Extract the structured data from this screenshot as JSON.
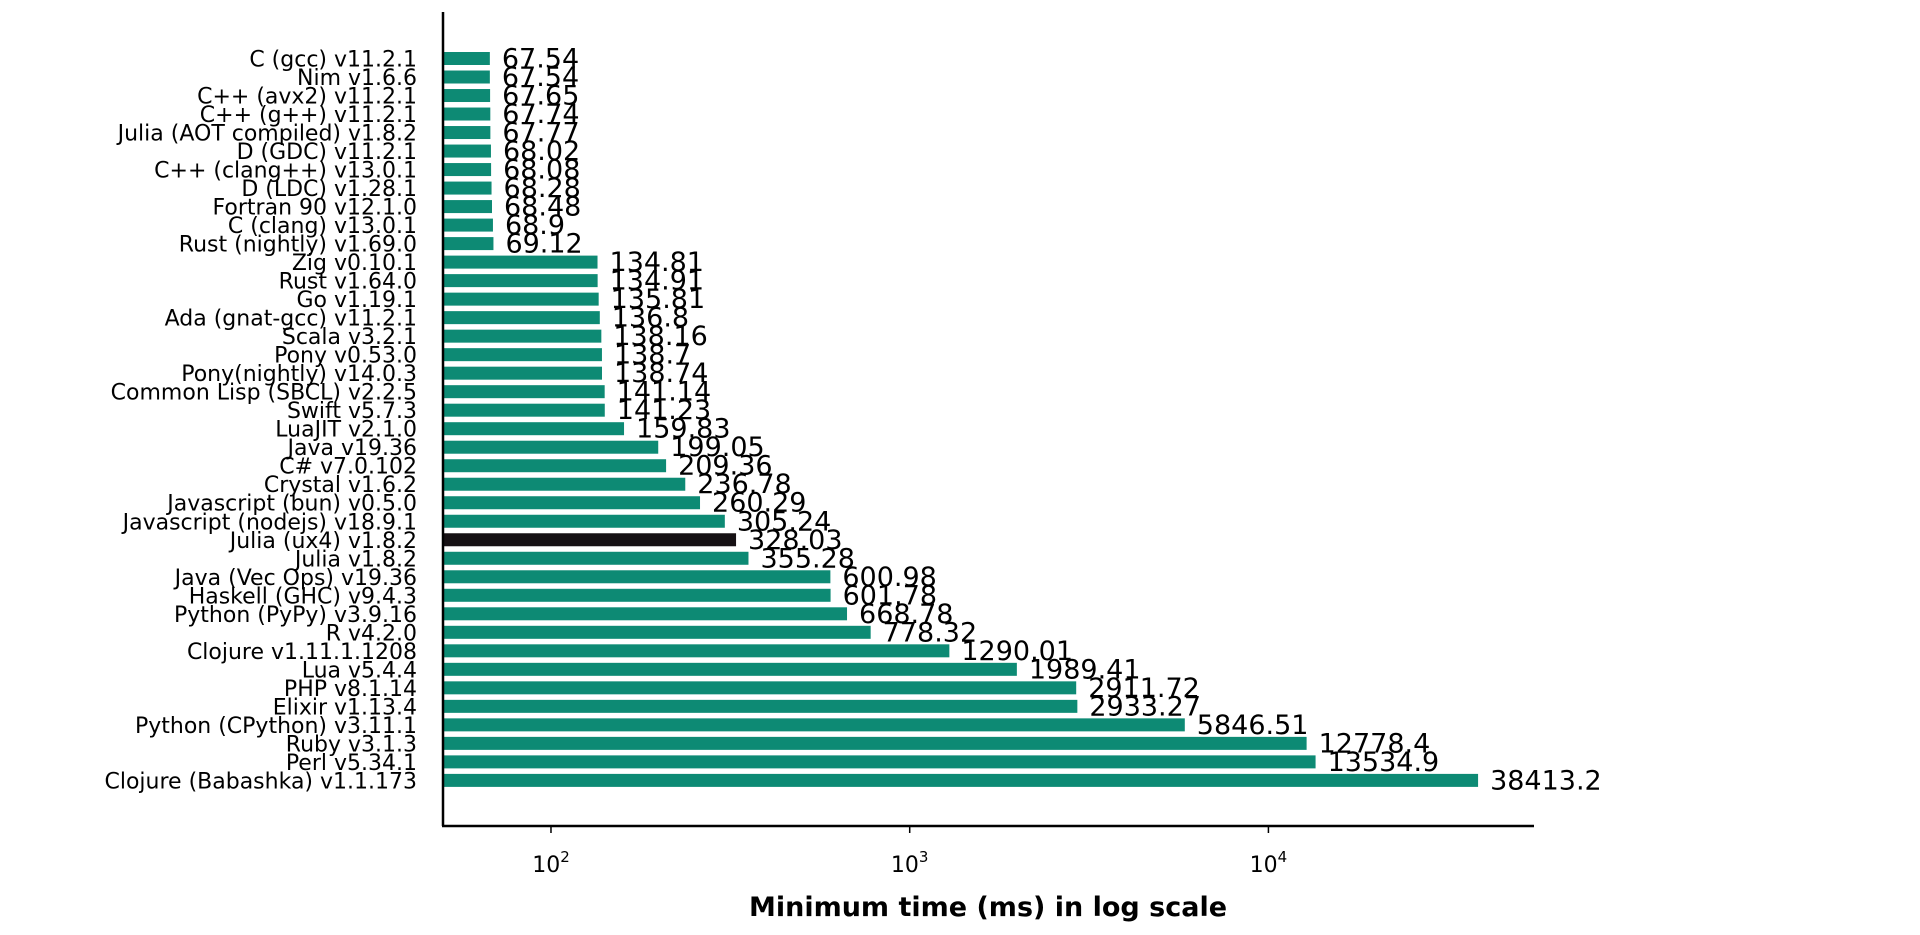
{
  "chart_data": {
    "type": "bar",
    "orientation": "horizontal",
    "x_scale": "log",
    "xlabel": "Minimum time (ms) in log scale",
    "ylabel": "",
    "title": "",
    "xlim": [
      50,
      55000
    ],
    "xticks": [
      {
        "value": 100,
        "base": "10",
        "exp": "2"
      },
      {
        "value": 1000,
        "base": "10",
        "exp": "3"
      },
      {
        "value": 10000,
        "base": "10",
        "exp": "4"
      }
    ],
    "grid": false,
    "colors": {
      "default": "#0d8a74",
      "highlight": "#161114"
    },
    "highlight_index": 27,
    "categories": [
      "C (gcc) v11.2.1",
      "Nim v1.6.6",
      "C++ (avx2) v11.2.1",
      "C++ (g++) v11.2.1",
      "Julia (AOT compiled) v1.8.2",
      "D (GDC) v11.2.1",
      "C++ (clang++) v13.0.1",
      "D (LDC) v1.28.1",
      "Fortran 90 v12.1.0",
      "C (clang) v13.0.1",
      "Rust (nightly) v1.69.0",
      "Zig v0.10.1",
      "Rust v1.64.0",
      "Go v1.19.1",
      "Ada (gnat-gcc) v11.2.1",
      "Scala v3.2.1",
      "Pony v0.53.0",
      "Pony(nightly) v14.0.3",
      "Common Lisp (SBCL) v2.2.5",
      "Swift v5.7.3",
      "LuaJIT v2.1.0",
      "Java v19.36",
      "C# v7.0.102",
      "Crystal v1.6.2",
      "Javascript (bun) v0.5.0",
      "Javascript (nodejs) v18.9.1",
      "Julia (ux4) v1.8.2",
      "Julia v1.8.2",
      "Java (Vec Ops) v19.36",
      "Haskell (GHC) v9.4.3",
      "Python (PyPy) v3.9.16",
      "R v4.2.0",
      "Clojure v1.11.1.1208",
      "Lua v5.4.4",
      "PHP v8.1.14",
      "Elixir v1.13.4",
      "Python (CPython) v3.11.1",
      "Ruby v3.1.3",
      "Perl v5.34.1",
      "Clojure (Babashka) v1.1.173"
    ],
    "values": [
      67.54,
      67.54,
      67.65,
      67.74,
      67.77,
      68.02,
      68.08,
      68.28,
      68.48,
      68.9,
      69.12,
      134.81,
      134.91,
      135.81,
      136.8,
      138.16,
      138.7,
      138.74,
      141.14,
      141.23,
      159.83,
      199.05,
      209.36,
      236.78,
      260.29,
      305.24,
      328.03,
      355.28,
      600.98,
      601.78,
      668.78,
      778.32,
      1290.01,
      1989.41,
      2911.72,
      2933.27,
      5846.51,
      12778.4,
      13534.9,
      38413.2
    ],
    "value_labels": [
      "67.54",
      "67.54",
      "67.65",
      "67.74",
      "67.77",
      "68.02",
      "68.08",
      "68.28",
      "68.48",
      "68.9",
      "69.12",
      "134.81",
      "134.91",
      "135.81",
      "136.8",
      "138.16",
      "138.7",
      "138.74",
      "141.14",
      "141.23",
      "159.83",
      "199.05",
      "209.36",
      "236.78",
      "260.29",
      "305.24",
      "328.03",
      "355.28",
      "600.98",
      "601.78",
      "668.78",
      "778.32",
      "1290.01",
      "1989.41",
      "2911.72",
      "2933.27",
      "5846.51",
      "12778.4",
      "13534.9",
      "38413.2"
    ]
  }
}
